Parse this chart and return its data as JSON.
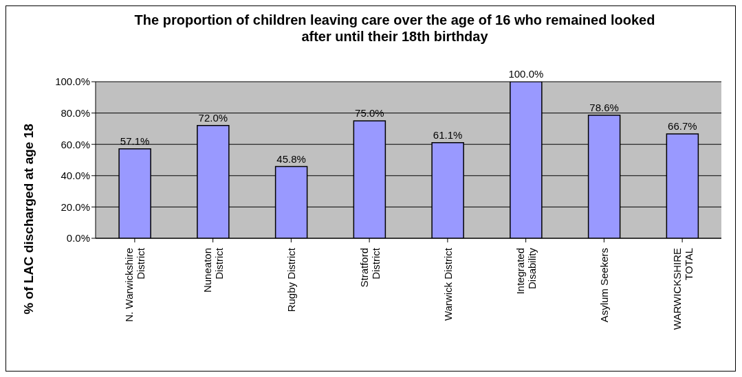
{
  "chart_data": {
    "type": "bar",
    "title": "The proportion of children leaving care over the age of 16 who remained looked after until their 18th birthday",
    "ylabel": "% of LAC discharged at age 18",
    "categories": [
      "N. Warwickshire District",
      "Nuneaton District",
      "Rugby District",
      "Stratford District",
      "Warwick District",
      "Integrated Disability",
      "Asylum Seekers",
      "WARWICKSHIRE TOTAL"
    ],
    "values": [
      57.1,
      72.0,
      45.8,
      75.0,
      61.1,
      100.0,
      78.6,
      66.7
    ],
    "value_labels": [
      "57.1%",
      "72.0%",
      "45.8%",
      "75.0%",
      "61.1%",
      "100.0%",
      "78.6%",
      "66.7%"
    ],
    "color": "#9999ff",
    "ylim": [
      0,
      100
    ],
    "yticks": [
      {
        "value": 0,
        "label": "0.0%"
      },
      {
        "value": 20,
        "label": "20.0%"
      },
      {
        "value": 40,
        "label": "40.0%"
      },
      {
        "value": 60,
        "label": "60.0%"
      },
      {
        "value": 80,
        "label": "80.0%"
      },
      {
        "value": 100,
        "label": "100.0%"
      }
    ],
    "grid": "y"
  }
}
